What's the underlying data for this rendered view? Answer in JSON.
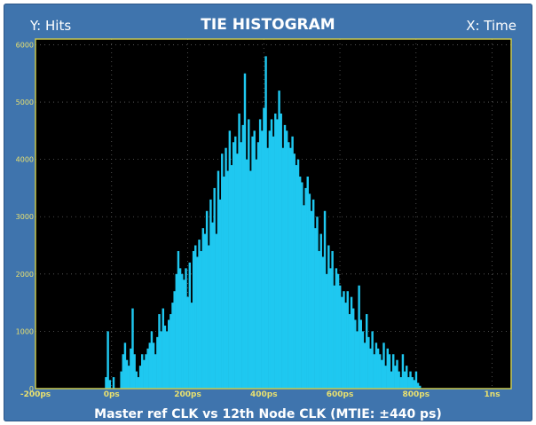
{
  "header": {
    "y_axis_label": "Y: Hits",
    "title": "TIE HISTOGRAM",
    "x_axis_label": "X: Time"
  },
  "footer": {
    "caption": "Master ref CLK  vs  12th Node CLK (MTIE: ±440 ps)"
  },
  "colors": {
    "frame": "#3f74ad",
    "plot_background": "#000000",
    "plot_border": "#c8c850",
    "bars": "#1fc8f0",
    "tick_labels": "#e8e070",
    "grid": "#606060"
  },
  "chart_data": {
    "type": "bar",
    "title": "TIE HISTOGRAM",
    "ylabel": "Y: Hits",
    "xlabel": "X: Time",
    "x_unit": "ps",
    "xlim": [
      -200,
      1050
    ],
    "ylim": [
      0,
      6100
    ],
    "x_ticks": [
      {
        "value": -200,
        "label": "-200ps"
      },
      {
        "value": 0,
        "label": "0ps"
      },
      {
        "value": 200,
        "label": "200ps"
      },
      {
        "value": 400,
        "label": "400ps"
      },
      {
        "value": 600,
        "label": "600ps"
      },
      {
        "value": 800,
        "label": "800ps"
      },
      {
        "value": 1000,
        "label": "1ns"
      }
    ],
    "y_ticks": [
      {
        "value": 0,
        "label": "0"
      },
      {
        "value": 1000,
        "label": "1000"
      },
      {
        "value": 2000,
        "label": "2000"
      },
      {
        "value": 3000,
        "label": "3000"
      },
      {
        "value": 4000,
        "label": "4000"
      },
      {
        "value": 5000,
        "label": "5000"
      },
      {
        "value": 6000,
        "label": "6000"
      }
    ],
    "grid": true,
    "bin_width_ps": 5,
    "bins": [
      [
        -15,
        200
      ],
      [
        -10,
        1000
      ],
      [
        -5,
        150
      ],
      [
        5,
        200
      ],
      [
        25,
        300
      ],
      [
        30,
        600
      ],
      [
        35,
        800
      ],
      [
        40,
        500
      ],
      [
        45,
        400
      ],
      [
        50,
        700
      ],
      [
        55,
        1400
      ],
      [
        60,
        600
      ],
      [
        65,
        300
      ],
      [
        70,
        200
      ],
      [
        75,
        400
      ],
      [
        80,
        600
      ],
      [
        85,
        500
      ],
      [
        90,
        600
      ],
      [
        95,
        700
      ],
      [
        100,
        800
      ],
      [
        105,
        1000
      ],
      [
        110,
        800
      ],
      [
        115,
        600
      ],
      [
        120,
        900
      ],
      [
        125,
        1300
      ],
      [
        130,
        1000
      ],
      [
        135,
        1400
      ],
      [
        140,
        1100
      ],
      [
        145,
        1000
      ],
      [
        150,
        1200
      ],
      [
        155,
        1300
      ],
      [
        160,
        1500
      ],
      [
        165,
        1700
      ],
      [
        170,
        2000
      ],
      [
        175,
        2400
      ],
      [
        180,
        2100
      ],
      [
        185,
        2000
      ],
      [
        190,
        1900
      ],
      [
        195,
        2100
      ],
      [
        200,
        1600
      ],
      [
        205,
        2200
      ],
      [
        210,
        1500
      ],
      [
        215,
        2400
      ],
      [
        220,
        2500
      ],
      [
        225,
        2300
      ],
      [
        230,
        2600
      ],
      [
        235,
        2400
      ],
      [
        240,
        2800
      ],
      [
        245,
        2700
      ],
      [
        250,
        3100
      ],
      [
        255,
        2500
      ],
      [
        260,
        3300
      ],
      [
        265,
        2900
      ],
      [
        270,
        3500
      ],
      [
        275,
        2700
      ],
      [
        280,
        3800
      ],
      [
        285,
        3300
      ],
      [
        290,
        4100
      ],
      [
        295,
        3700
      ],
      [
        300,
        4200
      ],
      [
        305,
        3800
      ],
      [
        310,
        4500
      ],
      [
        315,
        3900
      ],
      [
        320,
        4300
      ],
      [
        325,
        4400
      ],
      [
        330,
        4100
      ],
      [
        335,
        4800
      ],
      [
        340,
        4300
      ],
      [
        345,
        4600
      ],
      [
        350,
        5500
      ],
      [
        355,
        4000
      ],
      [
        360,
        4700
      ],
      [
        365,
        3800
      ],
      [
        370,
        4400
      ],
      [
        375,
        4500
      ],
      [
        380,
        4000
      ],
      [
        385,
        4300
      ],
      [
        390,
        4700
      ],
      [
        395,
        4500
      ],
      [
        400,
        4900
      ],
      [
        405,
        5800
      ],
      [
        410,
        4200
      ],
      [
        415,
        4500
      ],
      [
        420,
        4700
      ],
      [
        425,
        4400
      ],
      [
        430,
        4800
      ],
      [
        435,
        4700
      ],
      [
        440,
        5200
      ],
      [
        445,
        4800
      ],
      [
        450,
        4200
      ],
      [
        455,
        4600
      ],
      [
        460,
        4500
      ],
      [
        465,
        4300
      ],
      [
        470,
        4200
      ],
      [
        475,
        4400
      ],
      [
        480,
        4100
      ],
      [
        485,
        3900
      ],
      [
        490,
        4000
      ],
      [
        495,
        3700
      ],
      [
        500,
        3600
      ],
      [
        505,
        3200
      ],
      [
        510,
        3500
      ],
      [
        515,
        3700
      ],
      [
        520,
        3400
      ],
      [
        525,
        3100
      ],
      [
        530,
        3300
      ],
      [
        535,
        2800
      ],
      [
        540,
        3000
      ],
      [
        545,
        2400
      ],
      [
        550,
        2700
      ],
      [
        555,
        2300
      ],
      [
        560,
        3100
      ],
      [
        565,
        2000
      ],
      [
        570,
        2500
      ],
      [
        575,
        2100
      ],
      [
        580,
        2400
      ],
      [
        585,
        1800
      ],
      [
        590,
        2100
      ],
      [
        595,
        2000
      ],
      [
        600,
        1800
      ],
      [
        605,
        1600
      ],
      [
        610,
        1700
      ],
      [
        615,
        1500
      ],
      [
        620,
        1700
      ],
      [
        625,
        1300
      ],
      [
        630,
        1600
      ],
      [
        635,
        1400
      ],
      [
        640,
        1200
      ],
      [
        645,
        1000
      ],
      [
        650,
        1800
      ],
      [
        655,
        1200
      ],
      [
        660,
        1000
      ],
      [
        665,
        800
      ],
      [
        670,
        1300
      ],
      [
        675,
        900
      ],
      [
        680,
        700
      ],
      [
        685,
        1000
      ],
      [
        690,
        600
      ],
      [
        695,
        800
      ],
      [
        700,
        700
      ],
      [
        705,
        600
      ],
      [
        710,
        500
      ],
      [
        715,
        800
      ],
      [
        720,
        400
      ],
      [
        725,
        700
      ],
      [
        730,
        600
      ],
      [
        735,
        300
      ],
      [
        740,
        600
      ],
      [
        745,
        400
      ],
      [
        750,
        500
      ],
      [
        755,
        300
      ],
      [
        760,
        200
      ],
      [
        765,
        600
      ],
      [
        770,
        300
      ],
      [
        775,
        400
      ],
      [
        780,
        200
      ],
      [
        785,
        300
      ],
      [
        790,
        200
      ],
      [
        795,
        150
      ],
      [
        800,
        300
      ],
      [
        805,
        100
      ],
      [
        810,
        50
      ]
    ]
  }
}
